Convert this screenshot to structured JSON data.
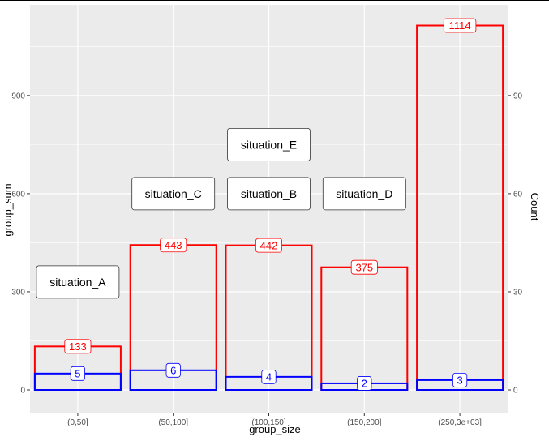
{
  "chart_data": {
    "type": "bar",
    "categories": [
      "(0,50]",
      "(50,100]",
      "(100,150]",
      "(150,200]",
      "(250,3e+03]"
    ],
    "xlabel": "group_size",
    "ylabel": "group_sum",
    "y2label": "Count",
    "ylim": [
      0,
      1150
    ],
    "y2_scale_factor": 10,
    "yticks": [
      0,
      300,
      600,
      900
    ],
    "y2ticks": [
      0,
      30,
      60,
      90
    ],
    "grid": true,
    "series": [
      {
        "color": "#ff0000",
        "axis": "left",
        "values": [
          133,
          443,
          442,
          375,
          1114
        ],
        "labels": [
          "133",
          "443",
          "442",
          "375",
          "1114"
        ]
      },
      {
        "color": "#0000ff",
        "axis": "right",
        "values": [
          5,
          6,
          4,
          2,
          3
        ],
        "labels": [
          "5",
          "6",
          "4",
          "2",
          "3"
        ]
      }
    ],
    "annotations": [
      {
        "text": "situation_A",
        "category": "(0,50]",
        "y": 330
      },
      {
        "text": "situation_C",
        "category": "(50,100]",
        "y": 600
      },
      {
        "text": "situation_B",
        "category": "(100,150]",
        "y": 600
      },
      {
        "text": "situation_D",
        "category": "(150,200]",
        "y": 600
      },
      {
        "text": "situation_E",
        "category": "(100,150]",
        "y": 750
      }
    ],
    "colors": {
      "panel": "#ebebeb",
      "grid": "#ffffff",
      "border": "#000000"
    }
  }
}
